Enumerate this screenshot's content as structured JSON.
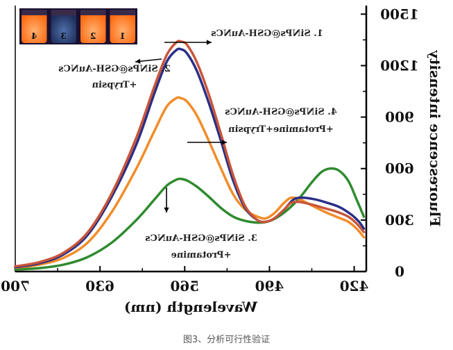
{
  "chart_data": {
    "type": "line",
    "xlabel": "Wavelength (nm)",
    "ylabel": "Fluorescence intensity",
    "xlim": [
      700,
      410
    ],
    "ylim": [
      0,
      1550
    ],
    "x_ticks": [
      "700",
      "630",
      "560",
      "490",
      "420"
    ],
    "y_ticks": [
      "0",
      "300",
      "600",
      "900",
      "1200",
      "1500"
    ],
    "mirrored_horizontally": true,
    "grid": false,
    "legend": "none",
    "series": [
      {
        "color": "#c8553a",
        "points": [
          [
            700,
            30
          ],
          [
            680,
            55
          ],
          [
            660,
            110
          ],
          [
            640,
            230
          ],
          [
            620,
            460
          ],
          [
            600,
            780
          ],
          [
            585,
            1080
          ],
          [
            575,
            1260
          ],
          [
            567,
            1335
          ],
          [
            563,
            1340
          ],
          [
            558,
            1320
          ],
          [
            550,
            1220
          ],
          [
            540,
            1030
          ],
          [
            530,
            800
          ],
          [
            520,
            560
          ],
          [
            510,
            380
          ],
          [
            500,
            300
          ],
          [
            493,
            290
          ],
          [
            486,
            310
          ],
          [
            478,
            360
          ],
          [
            472,
            400
          ],
          [
            465,
            405
          ],
          [
            455,
            390
          ],
          [
            445,
            370
          ],
          [
            435,
            350
          ],
          [
            425,
            320
          ],
          [
            418,
            280
          ],
          [
            412,
            230
          ]
        ]
      },
      {
        "color": "#2a2f86",
        "points": [
          [
            700,
            25
          ],
          [
            680,
            48
          ],
          [
            660,
            100
          ],
          [
            640,
            215
          ],
          [
            620,
            440
          ],
          [
            600,
            740
          ],
          [
            585,
            1040
          ],
          [
            575,
            1220
          ],
          [
            567,
            1290
          ],
          [
            563,
            1295
          ],
          [
            558,
            1270
          ],
          [
            550,
            1170
          ],
          [
            540,
            980
          ],
          [
            530,
            760
          ],
          [
            520,
            530
          ],
          [
            510,
            370
          ],
          [
            500,
            300
          ],
          [
            493,
            290
          ],
          [
            486,
            310
          ],
          [
            478,
            360
          ],
          [
            470,
            420
          ],
          [
            462,
            430
          ],
          [
            452,
            420
          ],
          [
            442,
            400
          ],
          [
            432,
            375
          ],
          [
            422,
            330
          ],
          [
            416,
            290
          ],
          [
            412,
            250
          ]
        ]
      },
      {
        "color": "#f28c28",
        "points": [
          [
            700,
            22
          ],
          [
            680,
            40
          ],
          [
            660,
            80
          ],
          [
            640,
            170
          ],
          [
            620,
            350
          ],
          [
            600,
            600
          ],
          [
            585,
            820
          ],
          [
            575,
            960
          ],
          [
            567,
            1010
          ],
          [
            563,
            1010
          ],
          [
            558,
            990
          ],
          [
            550,
            910
          ],
          [
            540,
            760
          ],
          [
            530,
            600
          ],
          [
            520,
            450
          ],
          [
            510,
            360
          ],
          [
            500,
            320
          ],
          [
            493,
            310
          ],
          [
            486,
            340
          ],
          [
            478,
            400
          ],
          [
            472,
            430
          ],
          [
            465,
            420
          ],
          [
            455,
            385
          ],
          [
            445,
            350
          ],
          [
            435,
            320
          ],
          [
            425,
            290
          ],
          [
            418,
            250
          ],
          [
            412,
            200
          ]
        ]
      },
      {
        "color": "#2e8b2e",
        "points": [
          [
            700,
            12
          ],
          [
            680,
            20
          ],
          [
            660,
            40
          ],
          [
            640,
            85
          ],
          [
            620,
            170
          ],
          [
            600,
            300
          ],
          [
            585,
            420
          ],
          [
            575,
            500
          ],
          [
            567,
            535
          ],
          [
            563,
            540
          ],
          [
            558,
            530
          ],
          [
            550,
            495
          ],
          [
            540,
            435
          ],
          [
            530,
            370
          ],
          [
            520,
            320
          ],
          [
            510,
            295
          ],
          [
            500,
            285
          ],
          [
            492,
            290
          ],
          [
            485,
            310
          ],
          [
            475,
            360
          ],
          [
            465,
            430
          ],
          [
            455,
            520
          ],
          [
            447,
            580
          ],
          [
            440,
            600
          ],
          [
            433,
            590
          ],
          [
            425,
            530
          ],
          [
            418,
            420
          ],
          [
            412,
            320
          ]
        ]
      }
    ],
    "annotations": [
      {
        "lines": [
          "1. SiNPs@GSH-AuNCs"
        ]
      },
      {
        "lines": [
          "2. SiNPs@GSH-AuNCs",
          "+Trypsin"
        ]
      },
      {
        "lines": [
          "4. SiNPs@GSH-AuNCs",
          "+Protamine+Trypsin"
        ]
      },
      {
        "lines": [
          "3. SiNPs@GSH-AuNCs",
          "+Protamine"
        ]
      }
    ],
    "inset_vials": [
      "4",
      "3",
      "2",
      "1"
    ]
  },
  "caption": "图3、分析可行性验证"
}
